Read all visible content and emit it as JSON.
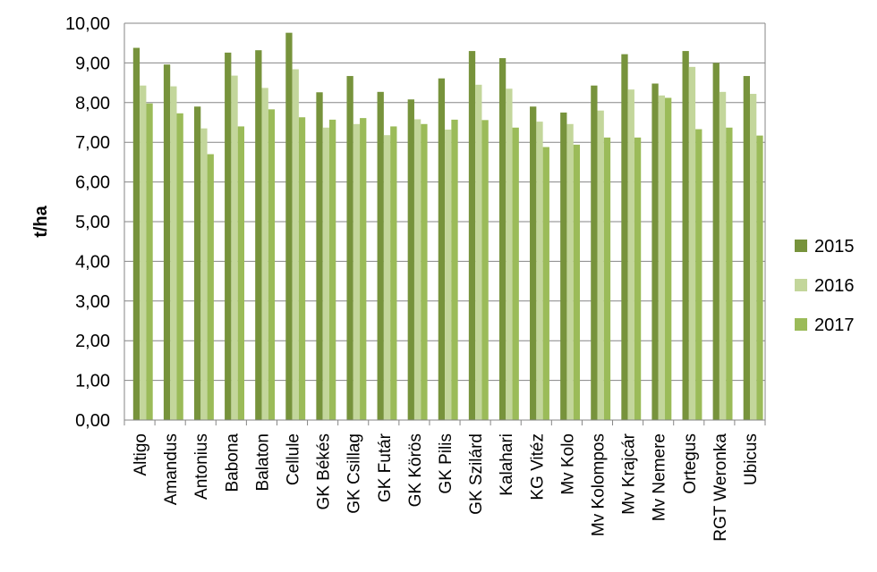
{
  "chart_data": {
    "type": "bar",
    "title": "",
    "xlabel": "",
    "ylabel": "t/ha",
    "ylim": [
      0,
      10
    ],
    "yticks": [
      "0,00",
      "1,00",
      "2,00",
      "3,00",
      "4,00",
      "5,00",
      "6,00",
      "7,00",
      "8,00",
      "9,00",
      "10,00"
    ],
    "grid": true,
    "legend_position": "right",
    "categories": [
      "Altigo",
      "Amandus",
      "Antonius",
      "Babona",
      "Balaton",
      "Cellule",
      "GK Békés",
      "GK Csillag",
      "GK Futár",
      "GK Körös",
      "GK Pilis",
      "GK Szilárd",
      "Kalahari",
      "KG Vitéz",
      "Mv Kolo",
      "Mv Kolompos",
      "Mv Krajcár",
      "Mv Nemere",
      "Ortegus",
      "RGT Weronka",
      "Ubicus"
    ],
    "series": [
      {
        "name": "2015",
        "color": "#77933c",
        "values": [
          9.38,
          8.96,
          7.9,
          9.26,
          9.32,
          9.76,
          8.26,
          8.67,
          8.27,
          8.08,
          8.61,
          9.3,
          9.12,
          7.9,
          7.75,
          8.43,
          9.22,
          8.48,
          9.3,
          9.0,
          8.67
        ]
      },
      {
        "name": "2016",
        "color": "#c3d69b",
        "values": [
          8.43,
          8.41,
          7.35,
          8.68,
          8.37,
          8.84,
          7.37,
          7.46,
          7.18,
          7.58,
          7.32,
          8.45,
          8.35,
          7.52,
          7.46,
          7.8,
          8.33,
          8.18,
          8.9,
          8.27,
          8.22
        ]
      },
      {
        "name": "2017",
        "color": "#9bbb59",
        "values": [
          7.98,
          7.73,
          6.7,
          7.4,
          7.83,
          7.63,
          7.57,
          7.61,
          7.4,
          7.46,
          7.57,
          7.56,
          7.37,
          6.88,
          6.94,
          7.12,
          7.12,
          8.12,
          7.33,
          7.37,
          7.17
        ]
      }
    ]
  }
}
